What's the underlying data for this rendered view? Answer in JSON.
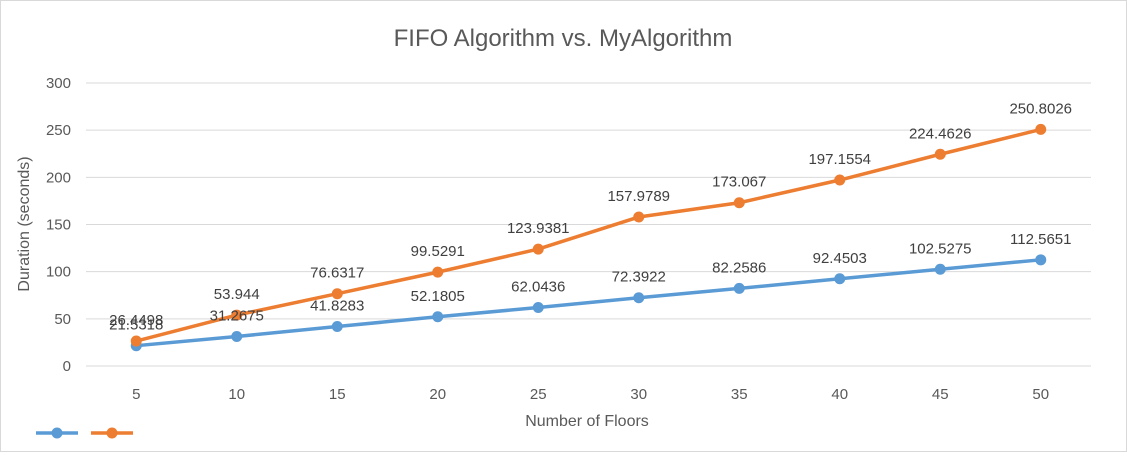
{
  "chart_data": {
    "type": "line",
    "title": "FIFO Algorithm vs. MyAlgorithm",
    "xlabel": "Number of Floors",
    "ylabel": "Duration (seconds)",
    "categories": [
      "5",
      "10",
      "15",
      "20",
      "25",
      "30",
      "35",
      "40",
      "45",
      "50"
    ],
    "ylim": [
      0,
      300
    ],
    "yticks": [
      "0",
      "50",
      "100",
      "150",
      "200",
      "250",
      "300"
    ],
    "grid": true,
    "legend_position": "bottom-left",
    "series": [
      {
        "color": "#5b9bd5",
        "values": [
          21.5318,
          31.2675,
          41.8283,
          52.1805,
          62.0436,
          72.3922,
          82.2586,
          92.4503,
          102.5275,
          112.5651
        ],
        "labels": [
          "21.5318",
          "31.2675",
          "41.8283",
          "52.1805",
          "62.0436",
          "72.3922",
          "82.2586",
          "92.4503",
          "102.5275",
          "112.5651"
        ]
      },
      {
        "color": "#ed7d31",
        "values": [
          26.4498,
          53.944,
          76.6317,
          99.5291,
          123.9381,
          157.9789,
          173.067,
          197.1554,
          224.4626,
          250.8026
        ],
        "labels": [
          "26.4498",
          "53.944",
          "76.6317",
          "99.5291",
          "123.9381",
          "157.9789",
          "173.067",
          "197.1554",
          "224.4626",
          "250.8026"
        ]
      }
    ]
  }
}
